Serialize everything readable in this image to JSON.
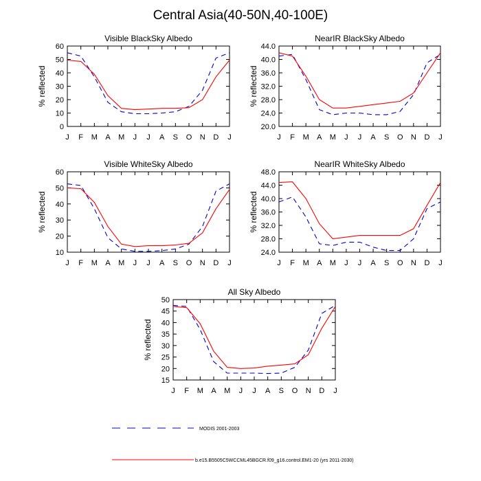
{
  "figure": {
    "title": "Central Asia(40-50N,40-100E)"
  },
  "legend": {
    "placement": "bottom",
    "entries": [
      {
        "label": "MODIS 2001-2003",
        "color": "#0000cc",
        "style": "dashed"
      },
      {
        "label": "b.e15.B5505C5WCCML45BGCR.f09_g16.control.EM1-20 (yrs 2011-2030)",
        "color": "#ff0000",
        "style": "solid"
      }
    ]
  },
  "chart_data": [
    {
      "type": "line",
      "title": "Visible BlackSky Albedo",
      "ylabel": "% reflected",
      "xlabel": "",
      "x": [
        "J",
        "F",
        "M",
        "A",
        "M",
        "J",
        "J",
        "A",
        "S",
        "O",
        "N",
        "D",
        "J"
      ],
      "ylim": [
        0,
        60
      ],
      "yticks": [
        "0",
        "10",
        "20",
        "30",
        "40",
        "50",
        "60"
      ],
      "grid": false,
      "series": [
        {
          "name": "MODIS 2001-2003",
          "values": [
            55,
            52.5,
            37,
            18,
            11,
            9.5,
            9.5,
            10,
            11,
            15,
            27,
            51,
            55
          ]
        },
        {
          "name": "b.e15.B5505C5WCCML45BGCR.f09_g16.control.EM1-20 (yrs 2011-2030)",
          "values": [
            49.5,
            48.5,
            39,
            23,
            13.5,
            12.5,
            13,
            13.5,
            13.5,
            14,
            20,
            37,
            49.5
          ]
        }
      ]
    },
    {
      "type": "line",
      "title": "NearIR BlackSky Albedo",
      "ylabel": "% reflected",
      "xlabel": "",
      "x": [
        "J",
        "F",
        "M",
        "A",
        "M",
        "J",
        "J",
        "A",
        "S",
        "O",
        "N",
        "D",
        "J"
      ],
      "ylim": [
        20,
        44
      ],
      "yticks": [
        "20.0",
        "24.0",
        "28.0",
        "32.0",
        "36.0",
        "40.0",
        "44.0"
      ],
      "grid": false,
      "series": [
        {
          "name": "MODIS 2001-2003",
          "values": [
            41.0,
            41.5,
            34.0,
            25.0,
            23.5,
            24.0,
            24.0,
            23.5,
            23.5,
            24.5,
            29.5,
            39.0,
            41.5
          ]
        },
        {
          "name": "b.e15.B5505C5WCCML45BGCR.f09_g16.control.EM1-20 (yrs 2011-2030)",
          "values": [
            42.0,
            41.0,
            35.0,
            28.0,
            25.5,
            25.5,
            26.0,
            26.5,
            27.0,
            27.5,
            30.0,
            36.0,
            42.0
          ]
        }
      ]
    },
    {
      "type": "line",
      "title": "Visible WhiteSky Albedo",
      "ylabel": "% reflected",
      "xlabel": "",
      "x": [
        "J",
        "F",
        "M",
        "A",
        "M",
        "J",
        "J",
        "A",
        "S",
        "O",
        "N",
        "D",
        "J"
      ],
      "ylim": [
        10,
        60
      ],
      "yticks": [
        "10",
        "20",
        "30",
        "40",
        "50",
        "60"
      ],
      "grid": false,
      "series": [
        {
          "name": "MODIS 2001-2003",
          "values": [
            52.5,
            51.5,
            37,
            19,
            12,
            10.5,
            10.5,
            11,
            12,
            15,
            26,
            48,
            52.5
          ]
        },
        {
          "name": "b.e15.B5505C5WCCML45BGCR.f09_g16.control.EM1-20 (yrs 2011-2030)",
          "values": [
            50,
            49.5,
            41,
            26,
            15,
            13.5,
            14,
            14,
            14.5,
            15.5,
            22,
            37,
            49
          ]
        }
      ]
    },
    {
      "type": "line",
      "title": "NearIR WhiteSky Albedo",
      "ylabel": "% reflected",
      "xlabel": "",
      "x": [
        "J",
        "F",
        "M",
        "A",
        "M",
        "J",
        "J",
        "A",
        "S",
        "O",
        "N",
        "D",
        "J"
      ],
      "ylim": [
        24,
        48
      ],
      "yticks": [
        "24.0",
        "28.0",
        "32.0",
        "36.0",
        "40.0",
        "44.0",
        "48.0"
      ],
      "grid": false,
      "series": [
        {
          "name": "MODIS 2001-2003",
          "values": [
            39.0,
            40.5,
            34.5,
            26.5,
            26.0,
            27.0,
            27.0,
            25.5,
            24.5,
            24.5,
            28.0,
            37.0,
            39.0
          ]
        },
        {
          "name": "b.e15.B5505C5WCCML45BGCR.f09_g16.control.EM1-20 (yrs 2011-2030)",
          "values": [
            44.8,
            45.0,
            40.0,
            32.5,
            28.0,
            28.5,
            29.0,
            29.0,
            29.0,
            29.0,
            31.0,
            38.0,
            44.8
          ]
        }
      ]
    },
    {
      "type": "line",
      "title": "All Sky Albedo",
      "ylabel": "% reflected",
      "xlabel": "",
      "x": [
        "J",
        "F",
        "M",
        "A",
        "M",
        "J",
        "J",
        "A",
        "S",
        "O",
        "N",
        "D",
        "J"
      ],
      "ylim": [
        15,
        50
      ],
      "yticks": [
        "15",
        "20",
        "25",
        "30",
        "35",
        "40",
        "45",
        "50"
      ],
      "grid": false,
      "series": [
        {
          "name": "MODIS 2001-2003",
          "values": [
            47.5,
            47,
            37,
            23,
            18,
            18,
            18,
            17.8,
            18,
            20.5,
            28,
            44,
            47.5
          ]
        },
        {
          "name": "b.e15.B5505C5WCCML45BGCR.f09_g16.control.EM1-20 (yrs 2011-2030)",
          "values": [
            47,
            46.5,
            39.5,
            27.5,
            20.5,
            20,
            20.2,
            21,
            21.5,
            22,
            26,
            37.5,
            47
          ]
        }
      ]
    }
  ]
}
